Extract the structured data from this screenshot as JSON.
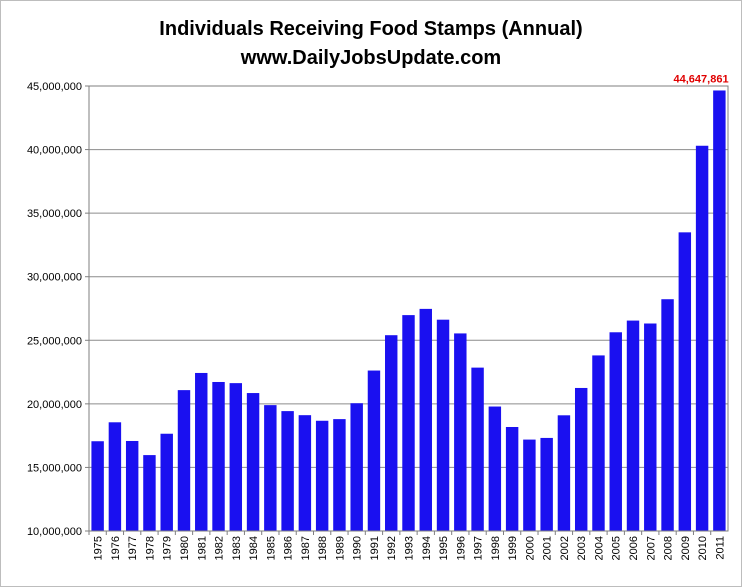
{
  "chart_data": {
    "type": "bar",
    "title": "Individuals Receiving Food Stamps (Annual)",
    "subtitle": "www.DailyJobsUpdate.com",
    "xlabel": "",
    "ylabel": "",
    "ylim": [
      10000000,
      45000000
    ],
    "yticks": [
      10000000,
      15000000,
      20000000,
      25000000,
      30000000,
      35000000,
      40000000,
      45000000
    ],
    "ytick_labels": [
      "10,000,000",
      "15,000,000",
      "20,000,000",
      "25,000,000",
      "30,000,000",
      "35,000,000",
      "40,000,000",
      "45,000,000"
    ],
    "grid": true,
    "legend": "none",
    "bar_color": "#1a10f0",
    "categories": [
      "1975",
      "1976",
      "1977",
      "1978",
      "1979",
      "1980",
      "1981",
      "1982",
      "1983",
      "1984",
      "1985",
      "1986",
      "1987",
      "1988",
      "1989",
      "1990",
      "1991",
      "1992",
      "1993",
      "1994",
      "1995",
      "1996",
      "1997",
      "1998",
      "1999",
      "2000",
      "2001",
      "2002",
      "2003",
      "2004",
      "2005",
      "2006",
      "2007",
      "2008",
      "2009",
      "2010",
      "2011"
    ],
    "values": [
      17060000,
      18550000,
      17080000,
      15970000,
      17650000,
      21080000,
      22430000,
      21720000,
      21630000,
      20850000,
      19900000,
      19430000,
      19110000,
      18670000,
      18800000,
      20050000,
      22620000,
      25400000,
      26980000,
      27470000,
      26620000,
      25540000,
      22850000,
      19790000,
      18180000,
      17190000,
      17320000,
      19100000,
      21250000,
      23810000,
      25630000,
      26550000,
      26320000,
      28230000,
      33490000,
      40300000,
      44647861
    ],
    "annotations": [
      {
        "category": "2011",
        "text": "44,647,861",
        "color": "#e00000"
      }
    ]
  }
}
